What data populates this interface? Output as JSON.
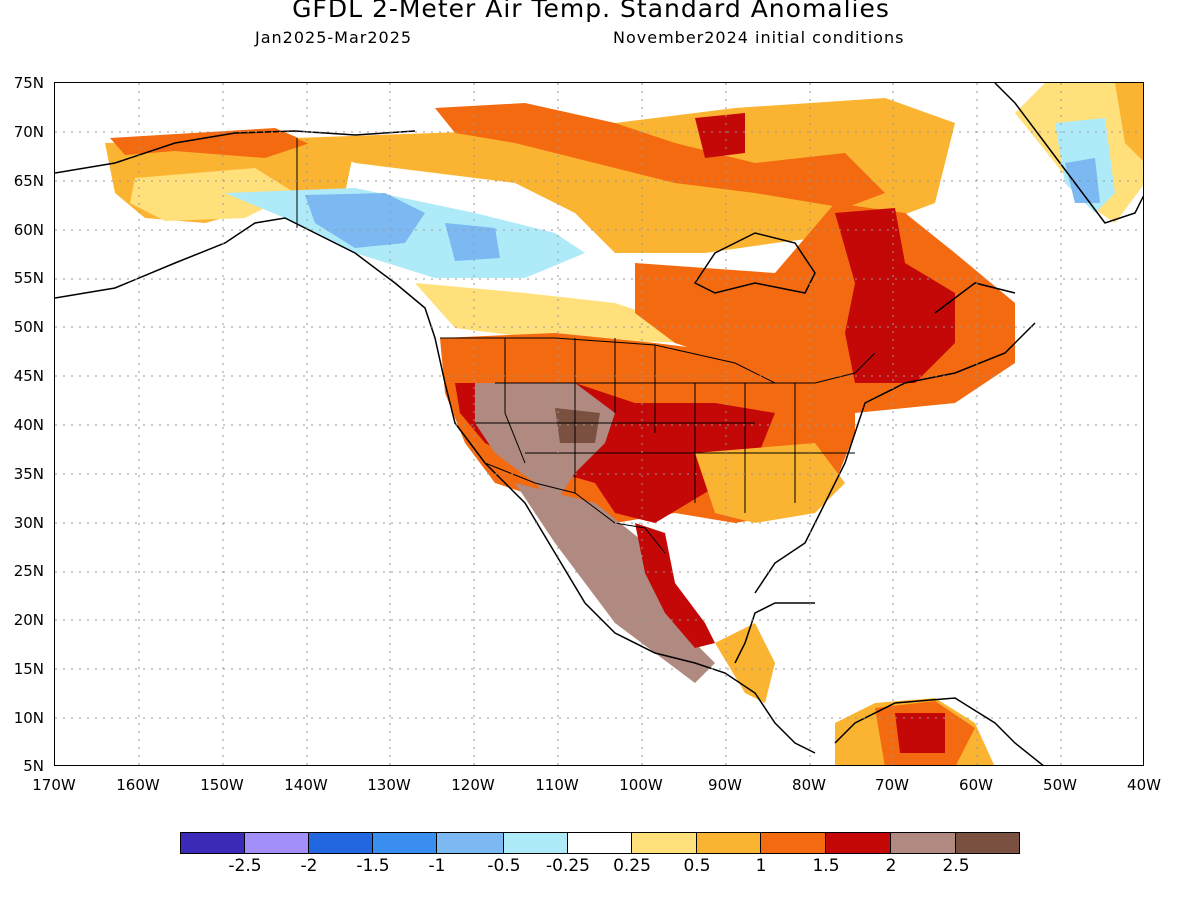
{
  "header": {
    "title": "GFDL 2-Meter Air Temp. Standard Anomalies",
    "period": "Jan2025-Mar2025",
    "init": "November2024 initial conditions"
  },
  "axes": {
    "lat_labels": [
      "75N",
      "70N",
      "65N",
      "60N",
      "55N",
      "50N",
      "45N",
      "40N",
      "35N",
      "30N",
      "25N",
      "20N",
      "15N",
      "10N",
      "5N"
    ],
    "lon_labels": [
      "170W",
      "160W",
      "150W",
      "140W",
      "130W",
      "120W",
      "110W",
      "100W",
      "90W",
      "80W",
      "70W",
      "60W",
      "50W",
      "40W"
    ]
  },
  "colorbar": {
    "colors": [
      "#3b2bb8",
      "#a48ff8",
      "#2266e0",
      "#3a8ef0",
      "#7cb8f2",
      "#aeeaf8",
      "#ffffff",
      "#ffe07a",
      "#fbb431",
      "#f46a10",
      "#c40808",
      "#b08a80",
      "#7a5040"
    ],
    "labels": [
      "-2.5",
      "-2",
      "-1.5",
      "-1",
      "-0.5",
      "-0.25",
      "0.25",
      "0.5",
      "1",
      "1.5",
      "2",
      "2.5"
    ]
  },
  "map": {
    "region": "North America",
    "colors": {
      "warm_light": "#ffe07a",
      "warm_mid": "#fbb431",
      "warm_strong": "#f46a10",
      "warm_very": "#c40808",
      "warm_extreme": "#b08a80",
      "warm_max": "#7a5040",
      "cool_light": "#aeeaf8",
      "cool_mid": "#7cb8f2"
    }
  }
}
